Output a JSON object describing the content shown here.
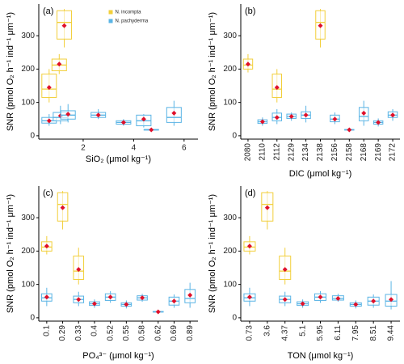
{
  "chart_data": [
    {
      "type": "box",
      "panel_label": "(a)",
      "xlabel": "SiO₂ (μmol kg⁻¹)",
      "ylabel": "SNR (pmol O₂ h⁻¹ ind⁻¹ μm⁻¹)",
      "xlim": [
        0.24,
        6.55
      ],
      "xticks": [
        2,
        4,
        6
      ],
      "ylim": [
        -10,
        395
      ],
      "yticks": [
        0,
        100,
        200,
        300
      ],
      "legend": "top",
      "series": [
        {
          "name": "N. incompta",
          "color": "#f2cf3a",
          "x": [
            0.65,
            1.05,
            1.25
          ],
          "values": [
            {
              "whislo": 100,
              "q1": 115,
              "med": 140,
              "q3": 185,
              "whishi": 200,
              "mean": 145
            },
            {
              "whislo": 185,
              "q1": 195,
              "med": 212,
              "q3": 230,
              "whishi": 245,
              "mean": 215
            },
            {
              "whislo": 265,
              "q1": 290,
              "med": 340,
              "q3": 375,
              "whishi": 380,
              "mean": 330
            }
          ]
        },
        {
          "name": "N. pachyderma",
          "color": "#5ab4e5",
          "x": [
            0.65,
            1.1,
            1.4,
            2.6,
            3.6,
            4.4,
            4.7,
            5.6
          ],
          "values": [
            {
              "whislo": 30,
              "q1": 38,
              "med": 45,
              "q3": 55,
              "whishi": 65,
              "mean": 45
            },
            {
              "whislo": 35,
              "q1": 45,
              "med": 55,
              "q3": 70,
              "whishi": 90,
              "mean": 60
            },
            {
              "whislo": 40,
              "q1": 50,
              "med": 62,
              "q3": 75,
              "whishi": 95,
              "mean": 65
            },
            {
              "whislo": 50,
              "q1": 55,
              "med": 62,
              "q3": 70,
              "whishi": 80,
              "mean": 62
            },
            {
              "whislo": 30,
              "q1": 35,
              "med": 40,
              "q3": 45,
              "whishi": 50,
              "mean": 40
            },
            {
              "whislo": 25,
              "q1": 30,
              "med": 45,
              "q3": 62,
              "whishi": 65,
              "mean": 50
            },
            {
              "whislo": 16,
              "q1": 17,
              "med": 18,
              "q3": 19,
              "whishi": 20,
              "mean": 18
            },
            {
              "whislo": 30,
              "q1": 40,
              "med": 55,
              "q3": 85,
              "whishi": 105,
              "mean": 68
            }
          ]
        }
      ]
    },
    {
      "type": "box",
      "panel_label": "(b)",
      "xlabel": "DIC (μmol kg⁻¹)",
      "ylabel": "SNR (pmol O₂ h⁻¹ ind⁻¹ μm⁻¹)",
      "categories": [
        "2080",
        "2110",
        "2112",
        "2129",
        "2134",
        "2138",
        "2156",
        "2158",
        "2168",
        "2169",
        "2172"
      ],
      "ylim": [
        -10,
        395
      ],
      "yticks": [
        0,
        100,
        200,
        300
      ],
      "series": [
        {
          "name": "N. incompta",
          "color": "#f2cf3a",
          "values": [
            {
              "whislo": 190,
              "q1": 200,
              "med": 212,
              "q3": 230,
              "whishi": 245,
              "mean": 215
            },
            null,
            {
              "whislo": 100,
              "q1": 115,
              "med": 140,
              "q3": 185,
              "whishi": 200,
              "mean": 145
            },
            null,
            null,
            {
              "whislo": 265,
              "q1": 290,
              "med": 340,
              "q3": 375,
              "whishi": 380,
              "mean": 330
            },
            null,
            null,
            null,
            null,
            null
          ]
        },
        {
          "name": "N. pachyderma",
          "color": "#5ab4e5",
          "values": [
            null,
            {
              "whislo": 30,
              "q1": 37,
              "med": 42,
              "q3": 48,
              "whishi": 55,
              "mean": 42
            },
            {
              "whislo": 35,
              "q1": 45,
              "med": 55,
              "q3": 68,
              "whishi": 80,
              "mean": 55
            },
            {
              "whislo": 45,
              "q1": 52,
              "med": 58,
              "q3": 65,
              "whishi": 70,
              "mean": 58
            },
            {
              "whislo": 40,
              "q1": 52,
              "med": 62,
              "q3": 72,
              "whishi": 90,
              "mean": 62
            },
            null,
            {
              "whislo": 35,
              "q1": 42,
              "med": 50,
              "q3": 62,
              "whishi": 70,
              "mean": 50
            },
            {
              "whislo": 16,
              "q1": 17,
              "med": 18,
              "q3": 19,
              "whishi": 20,
              "mean": 18
            },
            {
              "whislo": 30,
              "q1": 45,
              "med": 58,
              "q3": 85,
              "whishi": 105,
              "mean": 68
            },
            {
              "whislo": 28,
              "q1": 35,
              "med": 40,
              "q3": 45,
              "whishi": 52,
              "mean": 40
            },
            {
              "whislo": 45,
              "q1": 55,
              "med": 62,
              "q3": 72,
              "whishi": 80,
              "mean": 62
            }
          ]
        }
      ]
    },
    {
      "type": "box",
      "panel_label": "(c)",
      "xlabel": "PO₄³⁻ (μmol kg⁻¹)",
      "ylabel": "SNR (pmol O₂ h⁻¹ ind⁻¹ μm⁻¹)",
      "categories": [
        "0.1",
        "0.29",
        "0.33",
        "0.4",
        "0.52",
        "0.55",
        "0.58",
        "0.62",
        "0.69",
        "0.89"
      ],
      "ylim": [
        -10,
        395
      ],
      "yticks": [
        0,
        100,
        200,
        300
      ],
      "series": [
        {
          "name": "N. incompta",
          "color": "#f2cf3a",
          "values": [
            {
              "whislo": 190,
              "q1": 200,
              "med": 212,
              "q3": 228,
              "whishi": 245,
              "mean": 215
            },
            {
              "whislo": 265,
              "q1": 290,
              "med": 340,
              "q3": 375,
              "whishi": 380,
              "mean": 330
            },
            {
              "whislo": 100,
              "q1": 115,
              "med": 140,
              "q3": 185,
              "whishi": 210,
              "mean": 145
            },
            null,
            null,
            null,
            null,
            null,
            null,
            null
          ]
        },
        {
          "name": "N. pachyderma",
          "color": "#5ab4e5",
          "values": [
            {
              "whislo": 35,
              "q1": 50,
              "med": 60,
              "q3": 72,
              "whishi": 90,
              "mean": 62
            },
            null,
            {
              "whislo": 35,
              "q1": 45,
              "med": 55,
              "q3": 65,
              "whishi": 78,
              "mean": 55
            },
            {
              "whislo": 30,
              "q1": 37,
              "med": 42,
              "q3": 48,
              "whishi": 55,
              "mean": 42
            },
            {
              "whislo": 45,
              "q1": 52,
              "med": 62,
              "q3": 72,
              "whishi": 80,
              "mean": 62
            },
            {
              "whislo": 28,
              "q1": 35,
              "med": 40,
              "q3": 45,
              "whishi": 52,
              "mean": 40
            },
            {
              "whislo": 48,
              "q1": 53,
              "med": 60,
              "q3": 66,
              "whishi": 72,
              "mean": 60
            },
            {
              "whislo": 16,
              "q1": 17,
              "med": 18,
              "q3": 19,
              "whishi": 20,
              "mean": 18
            },
            {
              "whislo": 30,
              "q1": 38,
              "med": 50,
              "q3": 62,
              "whishi": 70,
              "mean": 50
            },
            {
              "whislo": 30,
              "q1": 45,
              "med": 58,
              "q3": 85,
              "whishi": 105,
              "mean": 68
            }
          ]
        }
      ]
    },
    {
      "type": "box",
      "panel_label": "(d)",
      "xlabel": "TON (μmol kg⁻¹)",
      "ylabel": "SNR (pmol O₂ h⁻¹ ind⁻¹ μm⁻¹)",
      "categories": [
        "0.73",
        "3.6",
        "4.37",
        "5.1",
        "5.95",
        "6.11",
        "7.95",
        "8.51",
        "9.44"
      ],
      "ylim": [
        -10,
        395
      ],
      "yticks": [
        0,
        100,
        200,
        300
      ],
      "series": [
        {
          "name": "N. incompta",
          "color": "#f2cf3a",
          "values": [
            {
              "whislo": 190,
              "q1": 200,
              "med": 212,
              "q3": 228,
              "whishi": 245,
              "mean": 215
            },
            {
              "whislo": 265,
              "q1": 290,
              "med": 340,
              "q3": 375,
              "whishi": 380,
              "mean": 330
            },
            {
              "whislo": 100,
              "q1": 115,
              "med": 140,
              "q3": 185,
              "whishi": 210,
              "mean": 145
            },
            null,
            null,
            null,
            null,
            null,
            null
          ]
        },
        {
          "name": "N. pachyderma",
          "color": "#5ab4e5",
          "values": [
            {
              "whislo": 35,
              "q1": 50,
              "med": 60,
              "q3": 72,
              "whishi": 90,
              "mean": 62
            },
            null,
            {
              "whislo": 35,
              "q1": 45,
              "med": 55,
              "q3": 65,
              "whishi": 78,
              "mean": 55
            },
            {
              "whislo": 30,
              "q1": 37,
              "med": 42,
              "q3": 48,
              "whishi": 55,
              "mean": 42
            },
            {
              "whislo": 45,
              "q1": 52,
              "med": 62,
              "q3": 72,
              "whishi": 80,
              "mean": 62
            },
            {
              "whislo": 48,
              "q1": 53,
              "med": 58,
              "q3": 66,
              "whishi": 72,
              "mean": 58
            },
            {
              "whislo": 28,
              "q1": 35,
              "med": 40,
              "q3": 45,
              "whishi": 52,
              "mean": 40
            },
            {
              "whislo": 30,
              "q1": 38,
              "med": 50,
              "q3": 62,
              "whishi": 70,
              "mean": 50
            },
            {
              "whislo": 25,
              "q1": 35,
              "med": 50,
              "q3": 70,
              "whishi": 110,
              "mean": 55
            }
          ]
        }
      ]
    }
  ]
}
